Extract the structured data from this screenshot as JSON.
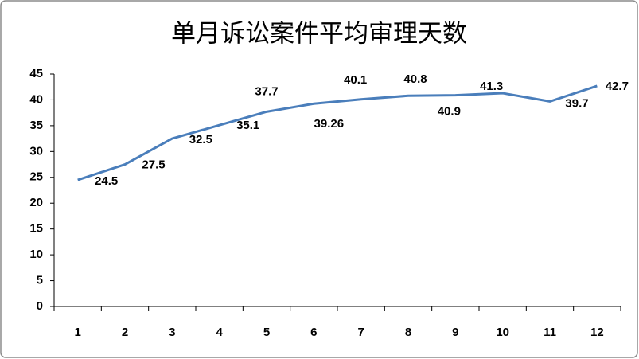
{
  "chart_data": {
    "type": "line",
    "title": "单月诉讼案件平均审理天数",
    "categories": [
      "1",
      "2",
      "3",
      "4",
      "5",
      "6",
      "7",
      "8",
      "9",
      "10",
      "11",
      "12"
    ],
    "values": [
      24.5,
      27.5,
      32.5,
      35.1,
      37.7,
      39.26,
      40.1,
      40.8,
      40.9,
      41.3,
      39.7,
      42.7
    ],
    "color": "#4a7ebb",
    "ylim": [
      0,
      45
    ],
    "yticks": [
      0,
      5,
      10,
      15,
      20,
      25,
      30,
      35,
      40,
      45
    ],
    "grid": false,
    "data_labels": true
  }
}
